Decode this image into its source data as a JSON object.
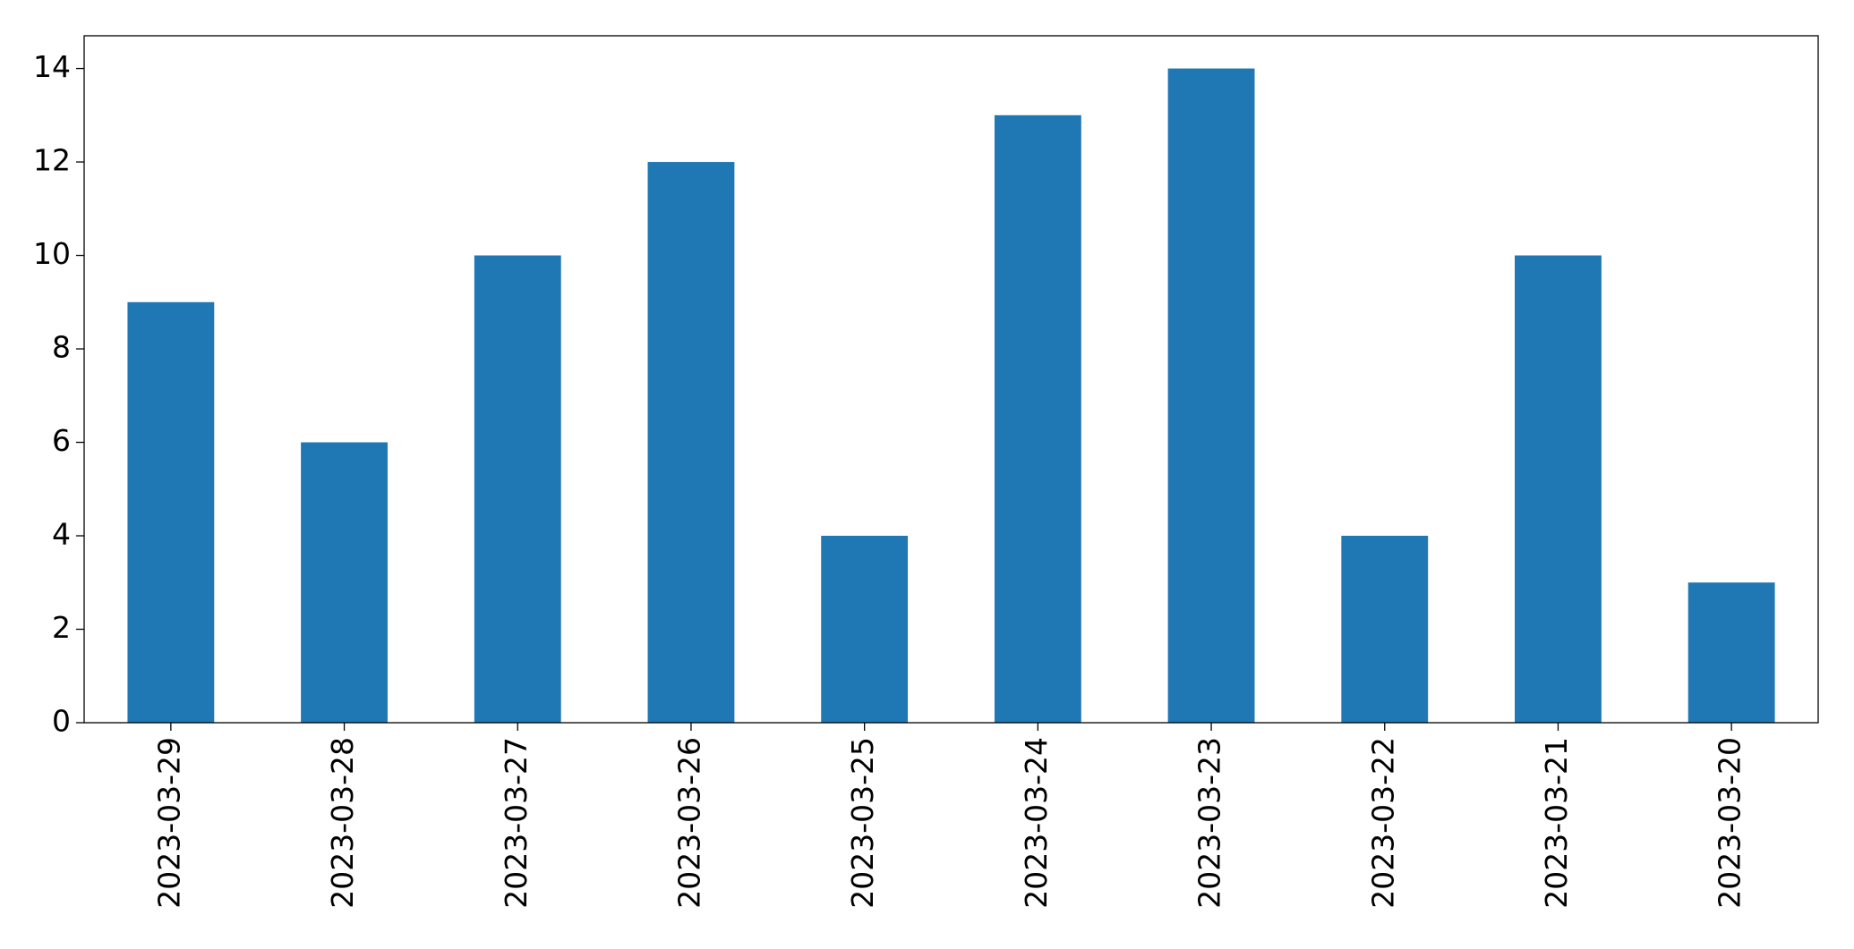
{
  "chart_data": {
    "type": "bar",
    "categories": [
      "2023-03-29",
      "2023-03-28",
      "2023-03-27",
      "2023-03-26",
      "2023-03-25",
      "2023-03-24",
      "2023-03-23",
      "2023-03-22",
      "2023-03-21",
      "2023-03-20"
    ],
    "values": [
      9,
      6,
      10,
      12,
      4,
      13,
      14,
      4,
      10,
      3
    ],
    "color": "#1f77b4",
    "ylim": [
      0,
      14.7
    ],
    "yticks": [
      0,
      2,
      4,
      6,
      8,
      10,
      12,
      14
    ],
    "grid": false
  }
}
